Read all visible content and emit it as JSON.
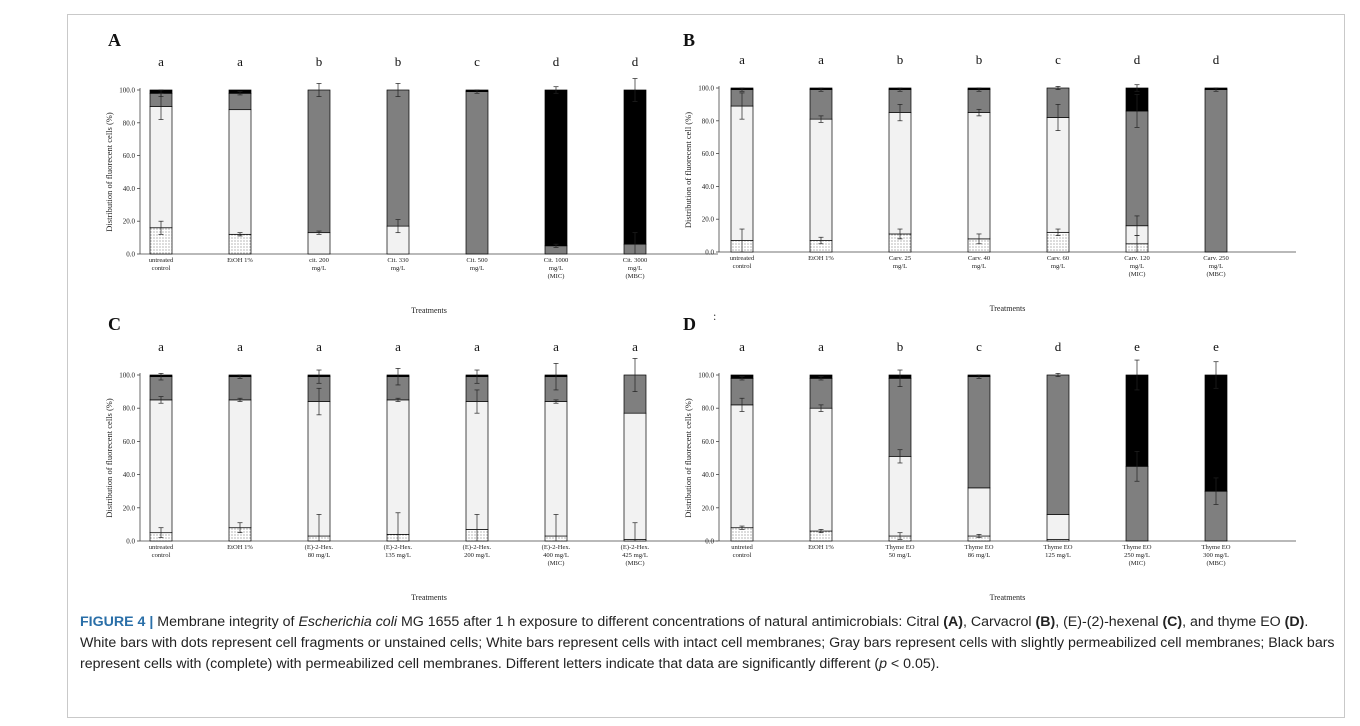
{
  "caption": {
    "lead": "FIGURE 4 |",
    "seg1": " Membrane integrity of ",
    "species": "Escherichia coli",
    "seg2": " MG 1655 after 1 h exposure to different concentrations of natural antimicrobials: Citral ",
    "refA": "(A)",
    "seg3": ", Carvacrol ",
    "refB": "(B)",
    "seg4": ", (E)-(2)-hexenal ",
    "refC": "(C)",
    "seg5": ", and thyme EO ",
    "refD": "(D)",
    "seg6": ". White bars with dots represent cell fragments or unstained cells; White bars represent cells with intact cell membranes; Gray bars represent cells with slightly permeabilized cell membranes; Black bars represent cells with (complete) with permeabilized cell membranes. Different letters indicate that data are significantly different (",
    "pvar": "p",
    "seg7": " < 0.05)."
  },
  "colors": {
    "dotted": "#ffffff",
    "intact": "#f2f2f2",
    "slight": "#7f7f7f",
    "permeabilized": "#000000"
  },
  "chart_data": [
    {
      "panel": "A",
      "type": "bar",
      "stacked": true,
      "xlabel": "Treatments",
      "ylabel": "Distribution of fluorecent cells (%)",
      "ylim": [
        0,
        100
      ],
      "yticks": [
        "0.0",
        "20.0",
        "40.0",
        "60.0",
        "80.0",
        "100.0"
      ],
      "categories": [
        [
          "untreated",
          "control"
        ],
        [
          "EtOH 1%"
        ],
        [
          "cit. 200",
          "mg/L"
        ],
        [
          "Cit. 330",
          "mg/L"
        ],
        [
          "Cit. 500",
          "mg/L"
        ],
        [
          "Cit. 1000",
          "mg/L",
          "(MIC)"
        ],
        [
          "Cit. 3000",
          "mg/L",
          "(MBC)"
        ]
      ],
      "letters": [
        "a",
        "a",
        "b",
        "b",
        "c",
        "d",
        "d"
      ],
      "segments": [
        [
          16,
          74,
          8,
          2
        ],
        [
          12,
          76,
          10,
          2
        ],
        [
          0,
          13,
          87,
          0
        ],
        [
          0,
          17,
          83,
          0
        ],
        [
          0,
          0,
          99,
          1
        ],
        [
          0,
          0,
          5,
          95
        ],
        [
          0,
          0,
          6,
          94
        ]
      ],
      "errors": [
        [
          4,
          8,
          2,
          0
        ],
        [
          1,
          0,
          1,
          0
        ],
        [
          0,
          1,
          4,
          0
        ],
        [
          0,
          4,
          4,
          0
        ],
        [
          0,
          0,
          1,
          0
        ],
        [
          0,
          0,
          1,
          2
        ],
        [
          0,
          0,
          7,
          7
        ]
      ]
    },
    {
      "panel": "B",
      "type": "bar",
      "stacked": true,
      "xlabel": "Treatments",
      "ylabel": "Distribution of fluorecent cell (%)",
      "ylim": [
        0,
        100
      ],
      "yticks": [
        "0.0",
        "20.0",
        "40.0",
        "60.0",
        "80.0",
        "100.0"
      ],
      "categories": [
        [
          "untreated",
          "control"
        ],
        [
          "EtOH 1%"
        ],
        [
          "Carv. 25",
          "mg/L"
        ],
        [
          "Carv. 40",
          "mg/L"
        ],
        [
          "Carv. 60",
          "mg/L"
        ],
        [
          "Carv. 120",
          "mg/L",
          "(MIC)"
        ],
        [
          "Carv. 250",
          "mg/L",
          "(MBC)"
        ]
      ],
      "letters": [
        "a",
        "a",
        "b",
        "b",
        "c",
        "d",
        "d"
      ],
      "segments": [
        [
          7,
          82,
          10,
          1
        ],
        [
          7,
          74,
          18,
          1
        ],
        [
          11,
          74,
          14,
          1
        ],
        [
          8,
          77,
          14,
          1
        ],
        [
          12,
          70,
          18,
          0
        ],
        [
          5,
          11,
          70,
          14
        ],
        [
          0,
          0,
          99,
          1
        ]
      ],
      "errors": [
        [
          7,
          8,
          1,
          0
        ],
        [
          2,
          2,
          1,
          0
        ],
        [
          3,
          5,
          1,
          0
        ],
        [
          3,
          2,
          1,
          0
        ],
        [
          2,
          8,
          1,
          0
        ],
        [
          5,
          6,
          10,
          2
        ],
        [
          0,
          0,
          1,
          0
        ]
      ]
    },
    {
      "panel": "C",
      "type": "bar",
      "stacked": true,
      "xlabel": "Treatments",
      "ylabel": "Distribution of fluorecent cells (%)",
      "ylim": [
        0,
        100
      ],
      "yticks": [
        "0.0",
        "20.0",
        "40.0",
        "60.0",
        "80.0",
        "100.0"
      ],
      "categories": [
        [
          "untreated",
          "control"
        ],
        [
          "EtOH 1%"
        ],
        [
          "(E)-2-Hex.",
          "80 mg/L"
        ],
        [
          "(E)-2-Hex.",
          "135 mg/L"
        ],
        [
          "(E)-2-Hex.",
          "200 mg/L"
        ],
        [
          "(E)-2-Hex.",
          "400 mg/L",
          "(MIC)"
        ],
        [
          "(E)-2-Hex.",
          "425 mg/L",
          "(MBC)"
        ]
      ],
      "letters": [
        "a",
        "a",
        "a",
        "a",
        "a",
        "a",
        "a"
      ],
      "segments": [
        [
          5,
          80,
          14,
          1
        ],
        [
          8,
          77,
          14,
          1
        ],
        [
          3,
          81,
          15,
          1
        ],
        [
          4,
          81,
          14,
          1
        ],
        [
          7,
          77,
          15,
          1
        ],
        [
          3,
          81,
          15,
          1
        ],
        [
          1,
          76,
          23,
          0
        ]
      ],
      "errors": [
        [
          3,
          2,
          2,
          0
        ],
        [
          3,
          1,
          1,
          0
        ],
        [
          13,
          8,
          4,
          0
        ],
        [
          13,
          1,
          5,
          0
        ],
        [
          9,
          7,
          4,
          0
        ],
        [
          13,
          1,
          8,
          0
        ],
        [
          10,
          0,
          10,
          0
        ]
      ]
    },
    {
      "panel": "D",
      "type": "bar",
      "stacked": true,
      "xlabel": "Treatments",
      "ylabel": "Distribution of fluorecent cells (%)",
      "ylim": [
        0,
        100
      ],
      "yticks": [
        "0.0",
        "20.0",
        "40.0",
        "60.0",
        "80.0",
        "100.0"
      ],
      "corner_mark": ":",
      "categories": [
        [
          "untreted",
          "control"
        ],
        [
          "EtOH 1%"
        ],
        [
          "Thyme EO",
          "50 mg/L"
        ],
        [
          "Thyme EO",
          "86 mg/L"
        ],
        [
          "Thyme EO",
          "125 mg/L"
        ],
        [
          "Thyme EO",
          "250 mg/L",
          "(MIC)"
        ],
        [
          "Thyme EO",
          "300 mg/L",
          "(MBC)"
        ]
      ],
      "letters": [
        "a",
        "a",
        "b",
        "c",
        "d",
        "e",
        "e"
      ],
      "segments": [
        [
          8,
          74,
          16,
          2
        ],
        [
          6,
          74,
          18,
          2
        ],
        [
          3,
          48,
          47,
          2
        ],
        [
          3,
          29,
          67,
          1
        ],
        [
          1,
          15,
          84,
          0
        ],
        [
          0,
          0,
          45,
          55
        ],
        [
          0,
          0,
          30,
          70
        ]
      ],
      "errors": [
        [
          1,
          4,
          1,
          0
        ],
        [
          1,
          2,
          1,
          0
        ],
        [
          2,
          4,
          5,
          0
        ],
        [
          1,
          0,
          1,
          0
        ],
        [
          0,
          0,
          1,
          0
        ],
        [
          0,
          0,
          9,
          9
        ],
        [
          0,
          0,
          8,
          8
        ]
      ]
    }
  ]
}
